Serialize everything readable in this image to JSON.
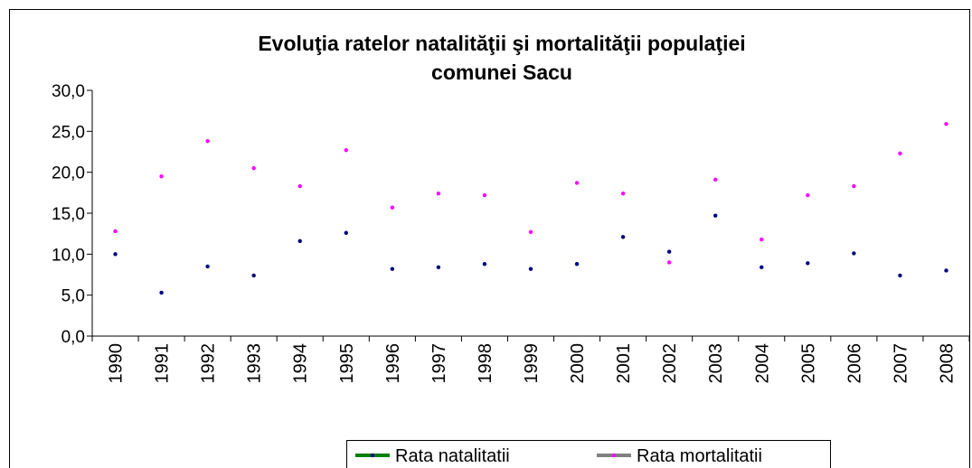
{
  "chart_data": {
    "type": "line",
    "title": [
      "Evoluţia ratelor natalităţii şi mortalităţii populaţiei",
      "comunei Sacu"
    ],
    "categories": [
      "1990",
      "1991",
      "1992",
      "1993",
      "1994",
      "1995",
      "1996",
      "1997",
      "1998",
      "1999",
      "2000",
      "2001",
      "2002",
      "2003",
      "2004",
      "2005",
      "2006",
      "2007",
      "2008"
    ],
    "series": [
      {
        "name": "Rata natalitatii",
        "color": "#008000",
        "marker_color": "#000080",
        "values": [
          10.0,
          5.3,
          8.5,
          7.4,
          11.6,
          12.6,
          8.2,
          8.4,
          8.8,
          8.2,
          8.8,
          12.1,
          10.3,
          14.7,
          8.4,
          8.9,
          10.1,
          7.4,
          8.0
        ]
      },
      {
        "name": "Rata mortalitatii",
        "color": "#808080",
        "marker_color": "#ff00ff",
        "values": [
          12.8,
          19.5,
          23.8,
          20.5,
          18.3,
          22.7,
          15.7,
          17.4,
          17.2,
          12.7,
          18.7,
          17.4,
          9.0,
          19.1,
          11.8,
          17.2,
          18.3,
          22.3,
          25.9
        ]
      }
    ],
    "ylim": [
      0,
      30
    ],
    "yticks": [
      {
        "value": 0,
        "label": "0,0"
      },
      {
        "value": 5,
        "label": "5,0"
      },
      {
        "value": 10,
        "label": "10,0"
      },
      {
        "value": 15,
        "label": "15,0"
      },
      {
        "value": 20,
        "label": "20,0"
      },
      {
        "value": 25,
        "label": "25,0"
      },
      {
        "value": 30,
        "label": "30,0"
      }
    ],
    "legend": "bottom"
  }
}
